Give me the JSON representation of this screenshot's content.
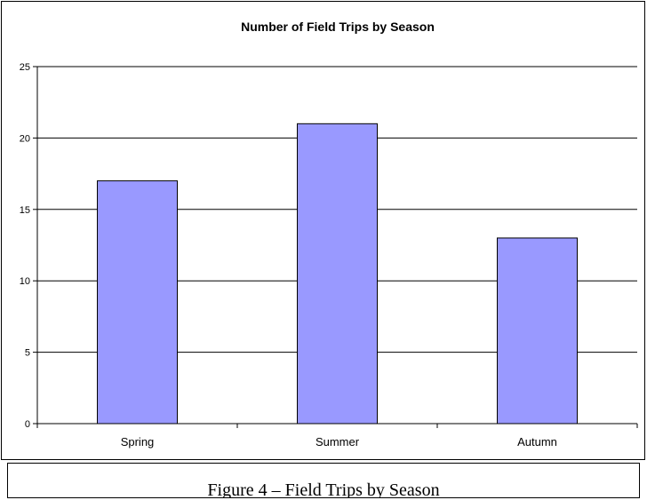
{
  "chart_data": {
    "type": "bar",
    "title": "Number of Field Trips by Season",
    "categories": [
      "Spring",
      "Summer",
      "Autumn"
    ],
    "values": [
      17,
      21,
      13
    ],
    "ylim": [
      0,
      25
    ],
    "yticks": [
      0,
      5,
      10,
      15,
      20,
      25
    ],
    "grid": true,
    "legend": "none",
    "bar_color": "#9999ff",
    "bar_edge_color": "#000000"
  },
  "caption": "Figure 4 – Field Trips by Season"
}
